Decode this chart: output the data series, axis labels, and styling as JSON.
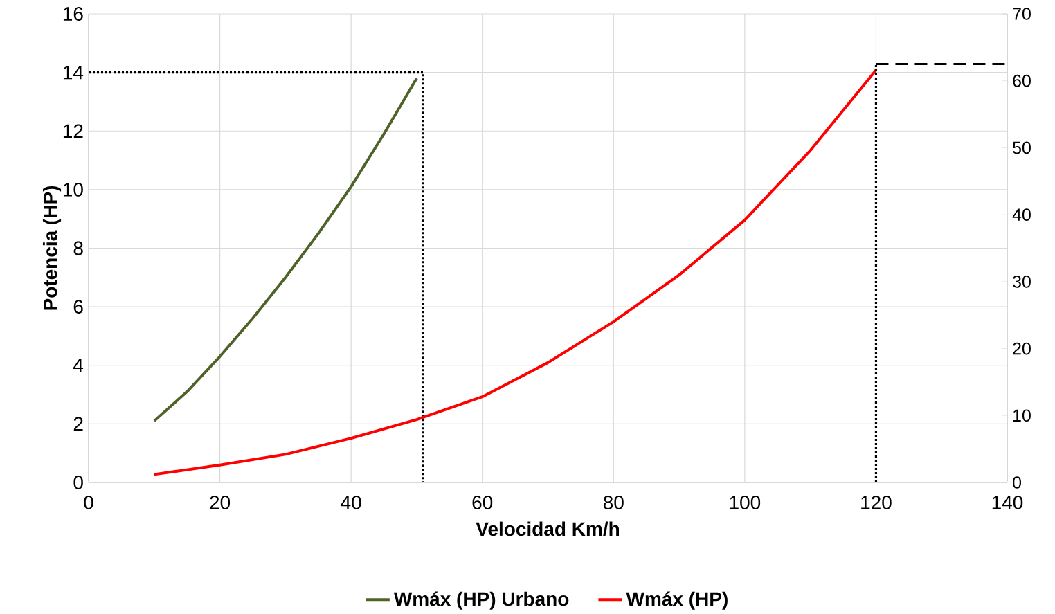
{
  "chart_data": {
    "type": "line",
    "xlabel": "Velocidad Km/h",
    "ylabel": "Potencia (HP)",
    "xlim": [
      0,
      140
    ],
    "xticks": [
      0,
      20,
      40,
      60,
      80,
      100,
      120,
      140
    ],
    "ylim": [
      0,
      16
    ],
    "yticks": [
      0,
      2,
      4,
      6,
      8,
      10,
      12,
      14,
      16
    ],
    "y2lim": [
      0,
      70
    ],
    "y2ticks": [
      0,
      10,
      20,
      30,
      40,
      50,
      60,
      70
    ],
    "grid": true,
    "legend": "bottom",
    "marker": "none",
    "line_style": "solid",
    "series": [
      {
        "name": "Wmáx (HP) Urbano",
        "color": "#4f6228",
        "x": [
          10,
          15,
          20,
          25,
          30,
          35,
          40,
          45,
          50
        ],
        "values": [
          2.1,
          3.1,
          4.3,
          5.6,
          7.0,
          8.5,
          10.1,
          11.9,
          13.8
        ]
      },
      {
        "name": "Wmáx (HP)",
        "color": "#ff0000",
        "axis": "y2",
        "x": [
          10,
          20,
          30,
          40,
          50,
          60,
          70,
          80,
          90,
          100,
          110,
          120
        ],
        "values": [
          1.2,
          2.6,
          4.2,
          6.6,
          9.4,
          12.8,
          17.9,
          24.0,
          31.0,
          39.2,
          49.6,
          61.6
        ]
      },
      {
        "color": "#000000",
        "line_style": "dotted",
        "x": [
          0,
          51,
          51
        ],
        "values": [
          14,
          14,
          0
        ]
      },
      {
        "color": "#000000",
        "line_style": "dotted",
        "axis": "y2",
        "x": [
          120,
          120
        ],
        "values": [
          0,
          62.5
        ]
      },
      {
        "color": "#000000",
        "line_style": "dashed",
        "axis": "y2",
        "x": [
          120,
          140
        ],
        "values": [
          62.5,
          62.5
        ]
      }
    ]
  }
}
